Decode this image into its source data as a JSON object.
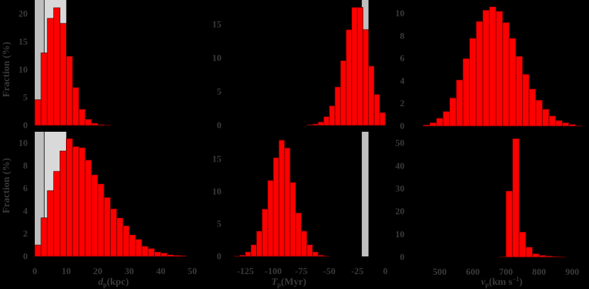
{
  "figure": {
    "background": "#000000",
    "bar_color": "#ff0000",
    "band_dark_color": "#bfbfbf",
    "band_light_color": "#d9d9d9",
    "text_color": "#3a3a3a"
  },
  "chart_data": [
    {
      "id": "top-left",
      "type": "bar",
      "title": "",
      "xlabel": "d_p (kpc)",
      "ylabel": "Fraction (%)",
      "bin_width": 2,
      "bin_edges_start": 0,
      "x": [
        1,
        3,
        5,
        7,
        9,
        11,
        13,
        15,
        17,
        19,
        21,
        23
      ],
      "values": [
        4.6,
        13.0,
        19.2,
        21.1,
        18.3,
        12.4,
        6.8,
        2.9,
        1.1,
        0.4,
        0.15,
        0.05
      ],
      "xlim": [
        0,
        50
      ],
      "ylim": [
        0,
        22.5
      ],
      "yticks": [
        0,
        5,
        10,
        15,
        20
      ],
      "xticks": [],
      "shaded_regions": [
        {
          "x0": 0,
          "x1": 3,
          "shade": "dark"
        },
        {
          "x0": 3,
          "x1": 10,
          "shade": "light"
        }
      ],
      "vlines": [
        3
      ]
    },
    {
      "id": "top-middle",
      "type": "bar",
      "title": "",
      "xlabel": "T_p (Myr)",
      "ylabel": "",
      "bin_width": 5,
      "x": [
        -67.5,
        -62.5,
        -57.5,
        -52.5,
        -47.5,
        -42.5,
        -37.5,
        -32.5,
        -27.5,
        -22.5,
        -17.5,
        -12.5,
        -7.5,
        -2.5
      ],
      "values": [
        0.1,
        0.2,
        0.5,
        1.3,
        2.9,
        5.7,
        9.6,
        14.2,
        17.5,
        17.5,
        14.2,
        8.8,
        4.6,
        1.9
      ],
      "xlim": [
        -140,
        0
      ],
      "ylim": [
        0,
        18.6
      ],
      "yticks": [
        0,
        5,
        10,
        15
      ],
      "xticks": [],
      "shaded_regions": [
        {
          "x0": -21,
          "x1": -15,
          "shade": "dark"
        }
      ]
    },
    {
      "id": "top-right",
      "type": "bar",
      "title": "",
      "xlabel": "v_p (km s^-1)",
      "ylabel": "",
      "bin_width": 20,
      "x": [
        460,
        480,
        500,
        520,
        540,
        560,
        580,
        600,
        620,
        640,
        660,
        680,
        700,
        720,
        740,
        760,
        780,
        800,
        820,
        840,
        860,
        880,
        900,
        920
      ],
      "values": [
        0.1,
        0.3,
        0.7,
        1.3,
        2.5,
        4.1,
        6.0,
        7.8,
        9.3,
        10.3,
        10.6,
        10.2,
        9.2,
        7.8,
        6.2,
        4.6,
        3.3,
        2.3,
        1.5,
        0.9,
        0.5,
        0.3,
        0.15,
        0.05
      ],
      "xlim": [
        415,
        940
      ],
      "ylim": [
        0,
        11.2
      ],
      "yticks": [
        0,
        2,
        4,
        6,
        8,
        10
      ],
      "xticks": []
    },
    {
      "id": "bottom-left",
      "type": "bar",
      "title": "",
      "xlabel": "d_p (kpc)",
      "ylabel": "Fraction (%)",
      "bin_width": 2,
      "x": [
        1,
        3,
        5,
        7,
        9,
        11,
        13,
        15,
        17,
        19,
        21,
        23,
        25,
        27,
        29,
        31,
        33,
        35,
        37,
        39,
        41,
        43,
        45,
        47
      ],
      "values": [
        1.0,
        3.4,
        5.8,
        7.5,
        9.3,
        10.4,
        9.7,
        9.6,
        8.5,
        7.2,
        6.4,
        5.2,
        4.2,
        3.4,
        2.7,
        1.9,
        1.5,
        0.9,
        0.7,
        0.4,
        0.3,
        0.15,
        0.1,
        0.07
      ],
      "xlim": [
        0,
        50
      ],
      "ylim": [
        0,
        11.0
      ],
      "yticks": [
        0,
        2,
        4,
        6,
        8,
        10
      ],
      "xticks": [
        0,
        10,
        20,
        30,
        40,
        50
      ],
      "shaded_regions": [
        {
          "x0": 0,
          "x1": 3,
          "shade": "dark"
        },
        {
          "x0": 3,
          "x1": 10,
          "shade": "light"
        }
      ],
      "vlines": [
        3
      ]
    },
    {
      "id": "bottom-middle",
      "type": "bar",
      "title": "",
      "xlabel": "T_p (Myr)",
      "ylabel": "",
      "bin_width": 5,
      "x": [
        -132.5,
        -127.5,
        -122.5,
        -117.5,
        -112.5,
        -107.5,
        -102.5,
        -97.5,
        -92.5,
        -87.5,
        -82.5,
        -77.5,
        -72.5,
        -67.5,
        -62.5,
        -57.5,
        -52.5
      ],
      "values": [
        0.05,
        0.2,
        0.7,
        1.8,
        3.9,
        7.3,
        11.7,
        15.2,
        17.9,
        16.7,
        11.4,
        6.7,
        3.9,
        1.8,
        0.7,
        0.2,
        0.05
      ],
      "xlim": [
        -140,
        0
      ],
      "ylim": [
        0,
        19.2
      ],
      "yticks": [
        0,
        5,
        10,
        15
      ],
      "xticks": [
        -125,
        -100,
        -75,
        -50,
        -25,
        0
      ],
      "shaded_regions": [
        {
          "x0": -21,
          "x1": -15,
          "shade": "dark"
        }
      ]
    },
    {
      "id": "bottom-right",
      "type": "bar",
      "title": "",
      "xlabel": "v_p (km s^-1)",
      "ylabel": "",
      "bin_width": 20,
      "x": [
        690,
        710,
        730,
        750,
        770,
        790,
        810,
        830,
        850,
        870
      ],
      "values": [
        0.1,
        29,
        52,
        11,
        4.4,
        1.5,
        0.8,
        0.5,
        0.3,
        0.1
      ],
      "xlim": [
        415,
        940
      ],
      "ylim": [
        0,
        55
      ],
      "yticks": [
        0,
        10,
        20,
        30,
        40,
        50
      ],
      "xticks": [
        500,
        600,
        700,
        800,
        900
      ]
    }
  ],
  "labels": {
    "ylabel_top": "Fraction (%)",
    "ylabel_bottom": "Fraction (%)",
    "xlabel_left_main": "d",
    "xlabel_left_sub": "p",
    "xlabel_left_unit": "(kpc)",
    "xlabel_mid_main": "T",
    "xlabel_mid_sub": "p",
    "xlabel_mid_unit": "(Myr)",
    "xlabel_right_main": "v",
    "xlabel_right_sub": "p",
    "xlabel_right_unit": "(km s",
    "xlabel_right_sup": "−1",
    "xlabel_right_close": ")"
  }
}
